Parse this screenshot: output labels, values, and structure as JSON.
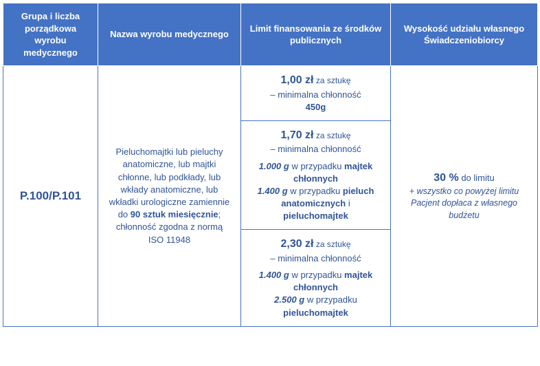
{
  "headers": {
    "col1": "Grupa i liczba porządkowa wyrobu medycznego",
    "col2": "Nazwa wyrobu medycznego",
    "col3": "Limit finansowania ze środków publicznych",
    "col4": "Wysokość udziału własnego Świadczeniobiorcy"
  },
  "body": {
    "code": "P.100/P.101",
    "desc_a": "Pieluchomajtki lub pieluchy anatomiczne, lub majtki chłonne, lub podkłady, lub wkłady anatomiczne, lub wkładki urologiczne zamiennie do ",
    "desc_b": "90 sztuk miesięcznie",
    "desc_c": "; chłonność zgodna z normą ISO 11948"
  },
  "limits": {
    "r1": {
      "price": "1,00 zł",
      "per": " za sztukę",
      "minline": "– minimalna chłonność",
      "spec1": "450g"
    },
    "r2": {
      "price": "1,70 zł",
      "per": " za sztukę",
      "minline": "– minimalna chłonność",
      "g1": "1.000 g",
      "g1_txt": " w przypadku ",
      "g1_bold": "majtek chłonnych",
      "g2": "1.400 g",
      "g2_txt": " w przypadku ",
      "g2_bold1": "pieluch anatomicznych",
      "g2_mid": " i ",
      "g2_bold2": "pieluchomajtek"
    },
    "r3": {
      "price": "2,30 zł",
      "per": " za sztukę",
      "minline": "– minimalna chłonność",
      "g1": "1.400 g",
      "g1_txt": " w przypadku ",
      "g1_bold": "majtek chłonnych",
      "g2": "2.500 g",
      "g2_txt": " w przypadku ",
      "g2_bold": "pieluchomajtek"
    }
  },
  "share": {
    "percent": "30 %",
    "percent_txt": " do limitu",
    "add": "+ wszystko co powyżej limitu Pacjent dopłaca z własnego budżetu"
  },
  "colors": {
    "accent": "#4472c4",
    "text": "#2f5496",
    "header_text": "#ffffff"
  }
}
